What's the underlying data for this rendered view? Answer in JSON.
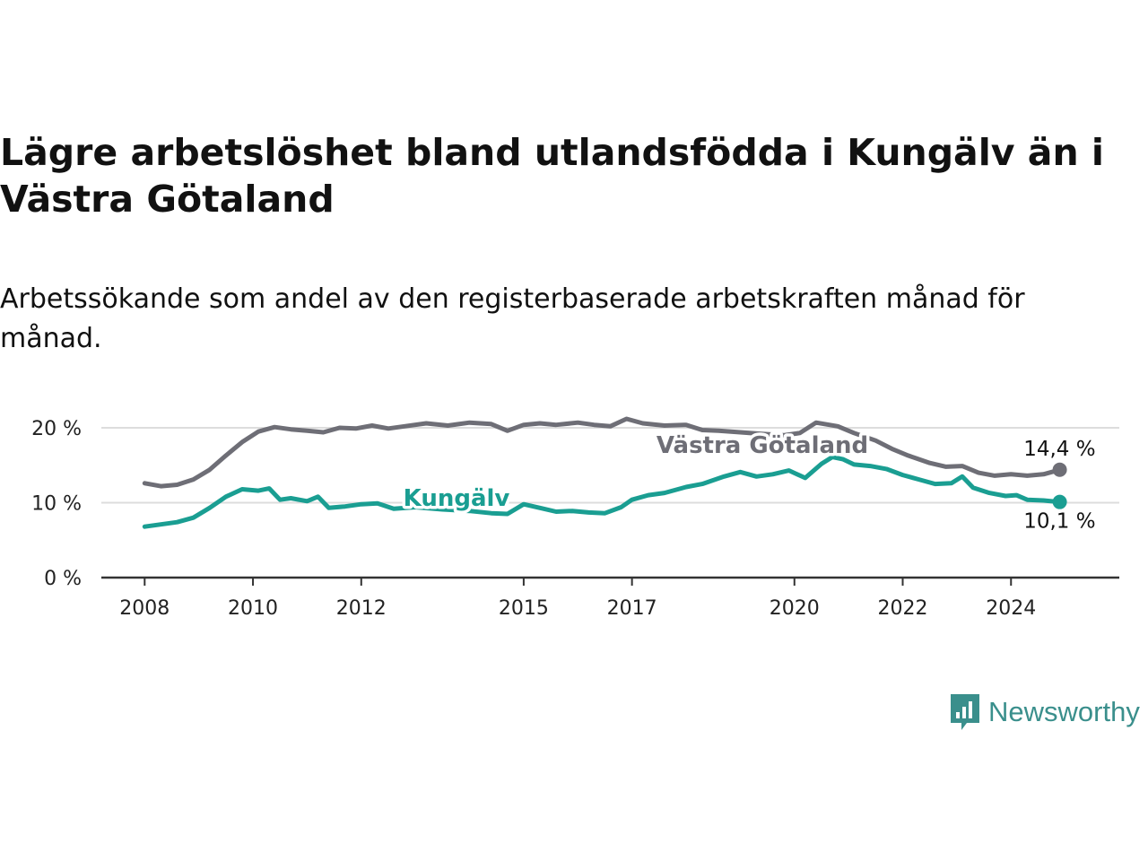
{
  "title": "Lägre arbetslöshet bland utlandsfödda i Kungälv än i Västra Götaland",
  "subtitle": "Arbetssökande som andel av den registerbaserade arbetskraften månad för månad.",
  "brand": {
    "name": "Newsworthy",
    "icon": "newsworthy-logo-icon"
  },
  "colors": {
    "kungalv": "#1a9e92",
    "vastra_gotaland": "#6e6e76",
    "grid": "#dddddd",
    "axis": "#333333"
  },
  "chart_data": {
    "type": "line",
    "title": "Lägre arbetslöshet bland utlandsfödda i Kungälv än i Västra Götaland",
    "subtitle": "Arbetssökande som andel av den registerbaserade arbetskraften månad för månad.",
    "xlabel": "",
    "ylabel": "",
    "ylim": [
      0,
      20
    ],
    "xlim": [
      2007.2,
      2026.0
    ],
    "y_ticks": [
      0,
      10,
      20
    ],
    "y_tick_labels": [
      "0 %",
      "10 %",
      "20 %"
    ],
    "x_ticks": [
      2008,
      2010,
      2012,
      2015,
      2017,
      2020,
      2022,
      2024
    ],
    "x_tick_labels": [
      "2008",
      "2010",
      "2012",
      "2015",
      "2017",
      "2020",
      "2022",
      "2024"
    ],
    "grid": "horizontal",
    "legend": "inline labels",
    "series": [
      {
        "name": "Västra Götaland",
        "end_label": "14,4 %",
        "points": [
          [
            2008.0,
            12.6
          ],
          [
            2008.3,
            12.2
          ],
          [
            2008.6,
            12.4
          ],
          [
            2008.9,
            13.1
          ],
          [
            2009.2,
            14.4
          ],
          [
            2009.5,
            16.3
          ],
          [
            2009.8,
            18.1
          ],
          [
            2010.1,
            19.5
          ],
          [
            2010.4,
            20.1
          ],
          [
            2010.7,
            19.8
          ],
          [
            2011.0,
            19.6
          ],
          [
            2011.3,
            19.4
          ],
          [
            2011.6,
            20.0
          ],
          [
            2011.9,
            19.9
          ],
          [
            2012.2,
            20.3
          ],
          [
            2012.5,
            19.9
          ],
          [
            2012.8,
            20.2
          ],
          [
            2013.2,
            20.6
          ],
          [
            2013.6,
            20.3
          ],
          [
            2014.0,
            20.7
          ],
          [
            2014.4,
            20.5
          ],
          [
            2014.7,
            19.6
          ],
          [
            2015.0,
            20.4
          ],
          [
            2015.3,
            20.6
          ],
          [
            2015.6,
            20.4
          ],
          [
            2016.0,
            20.7
          ],
          [
            2016.3,
            20.4
          ],
          [
            2016.6,
            20.2
          ],
          [
            2016.9,
            21.2
          ],
          [
            2017.2,
            20.6
          ],
          [
            2017.6,
            20.3
          ],
          [
            2018.0,
            20.4
          ],
          [
            2018.3,
            19.7
          ],
          [
            2018.6,
            19.6
          ],
          [
            2019.0,
            19.4
          ],
          [
            2019.4,
            19.2
          ],
          [
            2019.8,
            19.0
          ],
          [
            2020.1,
            19.3
          ],
          [
            2020.4,
            20.7
          ],
          [
            2020.8,
            20.2
          ],
          [
            2021.1,
            19.3
          ],
          [
            2021.5,
            18.3
          ],
          [
            2021.8,
            17.2
          ],
          [
            2022.1,
            16.3
          ],
          [
            2022.5,
            15.3
          ],
          [
            2022.8,
            14.8
          ],
          [
            2023.1,
            14.9
          ],
          [
            2023.4,
            14.0
          ],
          [
            2023.7,
            13.6
          ],
          [
            2024.0,
            13.8
          ],
          [
            2024.3,
            13.6
          ],
          [
            2024.6,
            13.8
          ],
          [
            2024.9,
            14.4
          ]
        ]
      },
      {
        "name": "Kungälv",
        "end_label": "10,1 %",
        "points": [
          [
            2008.0,
            6.8
          ],
          [
            2008.3,
            7.1
          ],
          [
            2008.6,
            7.4
          ],
          [
            2008.9,
            8.0
          ],
          [
            2009.2,
            9.3
          ],
          [
            2009.5,
            10.8
          ],
          [
            2009.8,
            11.8
          ],
          [
            2010.1,
            11.6
          ],
          [
            2010.3,
            11.9
          ],
          [
            2010.5,
            10.4
          ],
          [
            2010.7,
            10.6
          ],
          [
            2011.0,
            10.2
          ],
          [
            2011.2,
            10.8
          ],
          [
            2011.4,
            9.3
          ],
          [
            2011.7,
            9.5
          ],
          [
            2012.0,
            9.8
          ],
          [
            2012.3,
            9.9
          ],
          [
            2012.6,
            9.2
          ],
          [
            2013.0,
            9.4
          ],
          [
            2013.5,
            9.1
          ],
          [
            2014.0,
            8.9
          ],
          [
            2014.4,
            8.6
          ],
          [
            2014.7,
            8.5
          ],
          [
            2015.0,
            9.8
          ],
          [
            2015.3,
            9.3
          ],
          [
            2015.6,
            8.8
          ],
          [
            2015.9,
            8.9
          ],
          [
            2016.2,
            8.7
          ],
          [
            2016.5,
            8.6
          ],
          [
            2016.8,
            9.4
          ],
          [
            2017.0,
            10.4
          ],
          [
            2017.3,
            11.0
          ],
          [
            2017.6,
            11.3
          ],
          [
            2018.0,
            12.1
          ],
          [
            2018.3,
            12.5
          ],
          [
            2018.7,
            13.5
          ],
          [
            2019.0,
            14.1
          ],
          [
            2019.3,
            13.5
          ],
          [
            2019.6,
            13.8
          ],
          [
            2019.9,
            14.3
          ],
          [
            2020.2,
            13.3
          ],
          [
            2020.5,
            15.2
          ],
          [
            2020.7,
            16.1
          ],
          [
            2020.9,
            15.8
          ],
          [
            2021.1,
            15.1
          ],
          [
            2021.4,
            14.9
          ],
          [
            2021.7,
            14.5
          ],
          [
            2022.0,
            13.7
          ],
          [
            2022.3,
            13.1
          ],
          [
            2022.6,
            12.5
          ],
          [
            2022.9,
            12.6
          ],
          [
            2023.1,
            13.5
          ],
          [
            2023.3,
            12.0
          ],
          [
            2023.6,
            11.3
          ],
          [
            2023.9,
            10.9
          ],
          [
            2024.1,
            11.0
          ],
          [
            2024.3,
            10.4
          ],
          [
            2024.6,
            10.3
          ],
          [
            2024.9,
            10.1
          ]
        ]
      }
    ]
  }
}
